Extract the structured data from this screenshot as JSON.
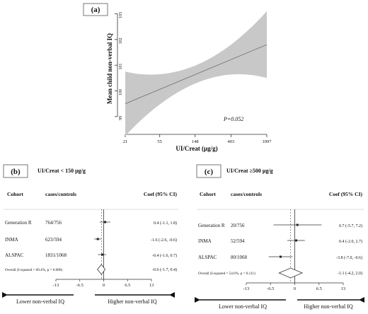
{
  "chart_data": [
    {
      "type": "line",
      "panel_label": "(a)",
      "ylabel": "Mean child non-verbal IQ",
      "xlabel": "UI/Creat (μg/g)",
      "x_ticks": [
        "21",
        "55",
        "148",
        "403",
        "1097"
      ],
      "x_scale": "log",
      "y_ticks": [
        "99",
        "100",
        "101",
        "102",
        "103"
      ],
      "xlim": [
        21,
        1097
      ],
      "ylim": [
        98.5,
        103.4
      ],
      "annotation": "P=0.052",
      "series": [
        {
          "x": [
            21,
            1097
          ],
          "y": [
            99.5,
            101.8
          ],
          "ci_lower": [
            98.3,
            100.6
          ],
          "ci_upper": [
            100.8,
            103.2
          ]
        }
      ]
    },
    {
      "type": "forest",
      "panel_label": "(b)",
      "title": "UI/Creat < 150 μg/g",
      "headers": {
        "cohort": "Cohort",
        "cases": "cases/controls",
        "coef": "Coef (95% CI)"
      },
      "rows": [
        {
          "cohort": "Generation R",
          "cases": "764/756",
          "coef": 0.4,
          "lo": -1.1,
          "hi": 1.8,
          "label": "0.4 (-1.1, 1.8)"
        },
        {
          "cohort": "INMA",
          "cases": "623/594",
          "coef": -1.6,
          "lo": -2.6,
          "hi": -0.6,
          "label": "-1.6 (-2.6, -0.6)"
        },
        {
          "cohort": "ALSPAC",
          "cases": "1831/1068",
          "coef": -0.4,
          "lo": -1.6,
          "hi": 0.7,
          "label": "-0.4 (-1.6, 0.7)"
        }
      ],
      "overall": {
        "text": "Overall  (I-squared = 60.4%, p = 0.080)",
        "coef": -0.6,
        "lo": -1.7,
        "hi": 0.4,
        "label": "-0.6 (-1.7, 0.4)"
      },
      "x_ticks": [
        -13,
        -6.5,
        0,
        6.5,
        13
      ],
      "xlim": [
        -13,
        13
      ],
      "arrow_left": "Lower non-verbal IQ",
      "arrow_right": "Higher non-verbal IQ"
    },
    {
      "type": "forest",
      "panel_label": "(c)",
      "title": "UI/Creat ≥500 μg/g",
      "headers": {
        "cohort": "Cohort",
        "cases": "cases/controls",
        "coef": "Coef (95% CI)"
      },
      "rows": [
        {
          "cohort": "Generation R",
          "cases": "20/756",
          "coef": 0.7,
          "lo": -5.7,
          "hi": 7.2,
          "label": "0.7 (-5.7, 7.2)"
        },
        {
          "cohort": "INMA",
          "cases": "52/594",
          "coef": 0.4,
          "lo": -2.0,
          "hi": 2.7,
          "label": "0.4 (-2.0, 2.7)"
        },
        {
          "cohort": "ALSPAC",
          "cases": "80/1068",
          "coef": -3.8,
          "lo": -7.0,
          "hi": -0.6,
          "label": "-3.8 (-7.0, -0.6)"
        }
      ],
      "overall": {
        "text": "Overall  (I-squared = 54.6%, p = 0.111)",
        "coef": -1.1,
        "lo": -4.2,
        "hi": 2.0,
        "label": "-1.1 (-4.2, 2.0)"
      },
      "x_ticks": [
        -13,
        -6.5,
        0,
        6.5,
        13
      ],
      "xlim": [
        -13,
        13
      ],
      "arrow_left": "Lower non-verbal IQ",
      "arrow_right": "Higher non-verbal IQ"
    }
  ]
}
